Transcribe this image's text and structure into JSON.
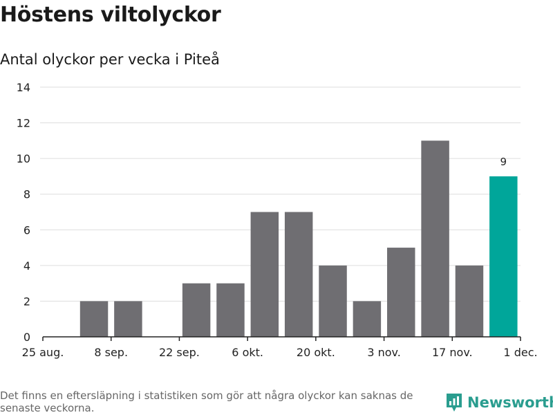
{
  "title": "Höstens viltolyckor",
  "subtitle": "Antal olyckor per vecka i Piteå",
  "footnote": "Det finns en eftersläpning i statistiken som gör att några olyckor kan saknas de senaste veckorna.",
  "brand": "Newsworthy",
  "colors": {
    "bar": "#6f6e72",
    "highlight": "#00a69a",
    "grid": "#dddddd",
    "axis": "#222222",
    "brand": "#2a9d8f"
  },
  "chart_data": {
    "type": "bar",
    "categories": [
      "25 aug.",
      "1 sep.",
      "8 sep.",
      "15 sep.",
      "22 sep.",
      "29 sep.",
      "6 okt.",
      "13 okt.",
      "20 okt.",
      "27 okt.",
      "3 nov.",
      "10 nov.",
      "17 nov.",
      "24 nov."
    ],
    "values": [
      null,
      2,
      2,
      null,
      3,
      3,
      7,
      7,
      4,
      2,
      5,
      11,
      4,
      9
    ],
    "highlight_index": 13,
    "data_labels": [
      {
        "index": 13,
        "text": "9"
      }
    ],
    "x_ticks": [
      "25 aug.",
      "8 sep.",
      "22 sep.",
      "6 okt.",
      "20 okt.",
      "3 nov.",
      "17 nov.",
      "1 dec."
    ],
    "y_ticks": [
      "0",
      "2",
      "4",
      "6",
      "8",
      "10",
      "12",
      "14"
    ],
    "ylim": [
      0,
      14
    ],
    "grid": true
  }
}
